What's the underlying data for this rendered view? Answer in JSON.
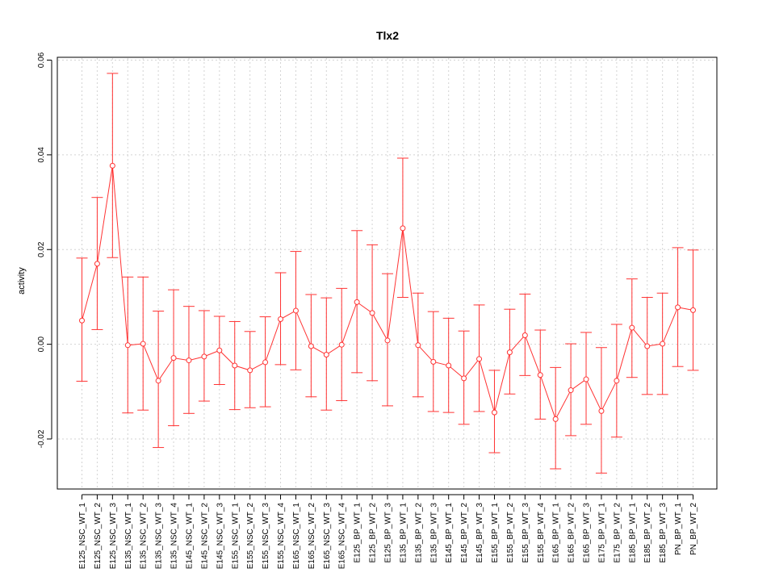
{
  "chart_data": {
    "type": "line",
    "title": "Tlx2",
    "xlabel": "",
    "ylabel": "activity",
    "ylim": [
      -0.03,
      0.06
    ],
    "yticks": [
      -0.02,
      0.0,
      0.02,
      0.04,
      0.06
    ],
    "ytick_labels": [
      "-0.02",
      "0.00",
      "0.02",
      "0.04",
      "0.06"
    ],
    "grid": true,
    "series_color": "#ff3333",
    "grid_color": "#d3d3d3",
    "categories": [
      "E125_NSC_WT_1",
      "E125_NSC_WT_2",
      "E125_NSC_WT_3",
      "E135_NSC_WT_1",
      "E135_NSC_WT_2",
      "E135_NSC_WT_3",
      "E135_NSC_WT_4",
      "E145_NSC_WT_1",
      "E145_NSC_WT_2",
      "E145_NSC_WT_3",
      "E155_NSC_WT_1",
      "E155_NSC_WT_2",
      "E155_NSC_WT_3",
      "E155_NSC_WT_4",
      "E165_NSC_WT_1",
      "E165_NSC_WT_2",
      "E165_NSC_WT_3",
      "E165_NSC_WT_4",
      "E125_BP_WT_1",
      "E125_BP_WT_2",
      "E125_BP_WT_3",
      "E135_BP_WT_1",
      "E135_BP_WT_2",
      "E135_BP_WT_3",
      "E145_BP_WT_1",
      "E145_BP_WT_2",
      "E145_BP_WT_3",
      "E155_BP_WT_1",
      "E155_BP_WT_2",
      "E155_BP_WT_3",
      "E155_BP_WT_4",
      "E165_BP_WT_1",
      "E165_BP_WT_2",
      "E165_BP_WT_3",
      "E175_BP_WT_1",
      "E175_BP_WT_2",
      "E185_BP_WT_1",
      "E185_BP_WT_2",
      "E185_BP_WT_3",
      "PN_BP_WT_1",
      "PN_BP_WT_2"
    ],
    "values": [
      0.005,
      0.017,
      0.0377,
      -0.0002,
      0.0001,
      -0.0077,
      -0.0029,
      -0.0034,
      -0.0026,
      -0.0013,
      -0.0045,
      -0.0055,
      -0.0038,
      0.0053,
      0.0071,
      -0.0004,
      -0.0022,
      -0.0001,
      0.0089,
      0.0066,
      0.0008,
      0.0245,
      -0.0002,
      -0.0037,
      -0.0045,
      -0.0072,
      -0.0031,
      -0.0144,
      -0.0017,
      0.0019,
      -0.0065,
      -0.0158,
      -0.0097,
      -0.0074,
      -0.0141,
      -0.0077,
      0.0035,
      -0.0004,
      0.0001,
      0.0078,
      0.0072
    ],
    "upper": [
      0.0182,
      0.031,
      0.0572,
      0.0142,
      0.0142,
      0.007,
      0.0115,
      0.008,
      0.0071,
      0.0059,
      0.0048,
      0.0027,
      0.0058,
      0.0151,
      0.0196,
      0.0105,
      0.0098,
      0.0118,
      0.024,
      0.021,
      0.0149,
      0.0393,
      0.0108,
      0.0069,
      0.0055,
      0.0028,
      0.0083,
      -0.0055,
      0.0074,
      0.0106,
      0.003,
      -0.0049,
      0.0001,
      0.0025,
      -0.0007,
      0.0042,
      0.0138,
      0.0099,
      0.0108,
      0.0204,
      0.0199
    ],
    "lower": [
      -0.0078,
      0.0031,
      0.0183,
      -0.0145,
      -0.0139,
      -0.0218,
      -0.0172,
      -0.0146,
      -0.012,
      -0.0085,
      -0.0138,
      -0.0134,
      -0.0132,
      -0.0043,
      -0.0054,
      -0.0111,
      -0.0139,
      -0.0119,
      -0.006,
      -0.0077,
      -0.013,
      0.0099,
      -0.0111,
      -0.0142,
      -0.0144,
      -0.0169,
      -0.0142,
      -0.0229,
      -0.0105,
      -0.0066,
      -0.0158,
      -0.0263,
      -0.0193,
      -0.0169,
      -0.0272,
      -0.0196,
      -0.007,
      -0.0106,
      -0.0106,
      -0.0047,
      -0.0055
    ]
  }
}
